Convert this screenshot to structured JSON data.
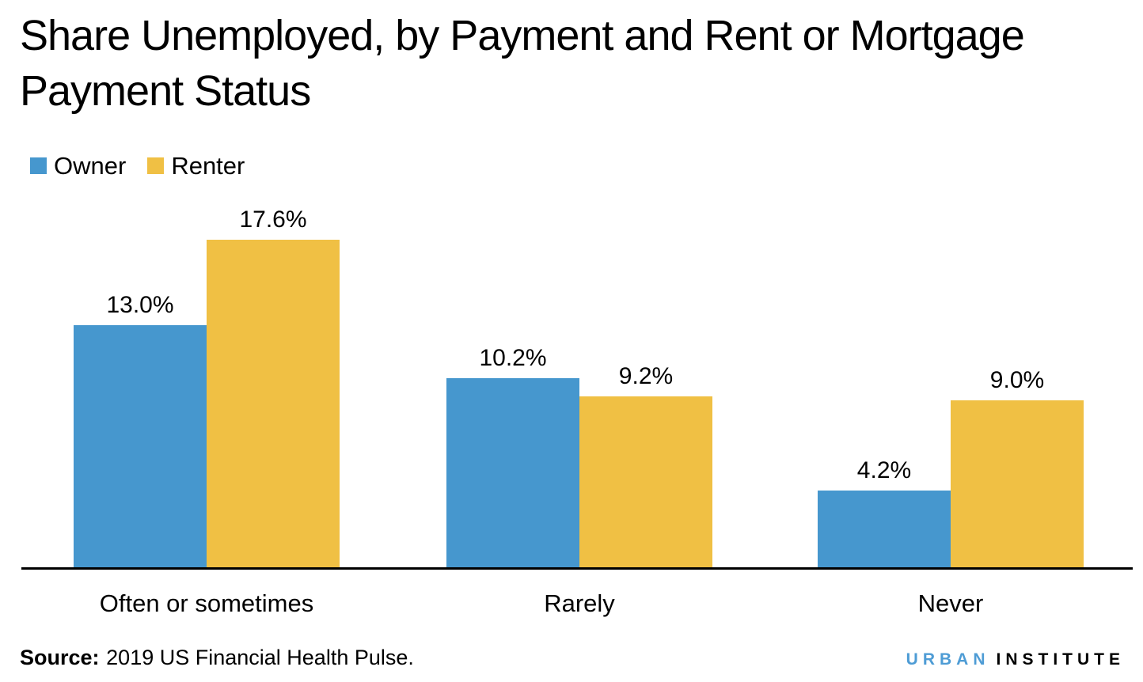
{
  "title": {
    "line1": "Share Unemployed, by Payment and Rent or Mortgage",
    "line2": "Payment Status"
  },
  "legend": [
    {
      "label": "Owner",
      "color": "#4697CE"
    },
    {
      "label": "Renter",
      "color": "#F0C044"
    }
  ],
  "chart_data": {
    "type": "bar",
    "title": "Share Unemployed, by Payment and Rent or Mortgage Payment Status",
    "categories": [
      "Often or sometimes",
      "Rarely",
      "Never"
    ],
    "series": [
      {
        "name": "Owner",
        "color": "#4697CE",
        "values": [
          13.0,
          10.2,
          4.2
        ]
      },
      {
        "name": "Renter",
        "color": "#F0C044",
        "values": [
          17.6,
          9.2,
          9.0
        ]
      }
    ],
    "value_labels": [
      [
        "13.0%",
        "10.2%",
        "4.2%"
      ],
      [
        "17.6%",
        "9.2%",
        "9.0%"
      ]
    ],
    "xlabel": "",
    "ylabel": "",
    "ylim": [
      0,
      20
    ],
    "grid": false,
    "legend_position": "top-left",
    "axis_color": "#000000"
  },
  "source": {
    "label": "Source:",
    "text": "2019 US Financial Health Pulse."
  },
  "logo": {
    "word1": "URBAN",
    "word2": "INSTITUTE",
    "word1_color": "#4E9CD5",
    "word2_color": "#000000"
  }
}
